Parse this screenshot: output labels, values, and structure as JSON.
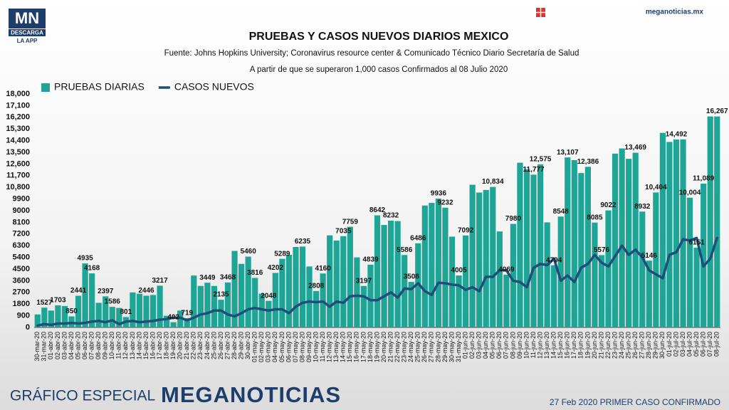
{
  "header": {
    "logo": "MN",
    "logo_sub": "DESCARGA",
    "logo_app": "LA APP",
    "site": "meganoticias.mx"
  },
  "footer": {
    "left": "GRÁFICO ESPECIAL",
    "brand": "MEGANOTICIAS",
    "right": "27 Feb 2020 PRIMER CASO CONFIRMADO"
  },
  "chart_data": {
    "type": "bar_line",
    "title": "PRUEBAS Y CASOS NUEVOS DIARIOS MEXICO",
    "subtitle": "Fuente: Johns Hopkins University; Coronavirus resource center & Comunicado Técnico Diario Secretaría de Salud",
    "note": "A partir de que se superaron 1,000 casos Confirmados al 08 Julio 2020",
    "categories": [
      "30-mar-20",
      "31-mar-20",
      "01-abr-20",
      "02-abr-20",
      "03-abr-20",
      "04-abr-20",
      "05-abr-20",
      "06-abr-20",
      "07-abr-20",
      "08-abr-20",
      "09-abr-20",
      "10-abr-20",
      "11-abr-20",
      "12-abr-20",
      "13-abr-20",
      "14-abr-20",
      "15-abr-20",
      "16-abr-20",
      "17-abr-20",
      "18-abr-20",
      "19-abr-20",
      "20-abr-20",
      "21-abr-20",
      "22-abr-20",
      "23-abr-20",
      "24-abr-20",
      "25-abr-20",
      "26-abr-20",
      "27-abr-20",
      "28-abr-20",
      "29-abr-20",
      "30-abr-20",
      "01-may-20",
      "02-may-20",
      "03-may-20",
      "04-may-20",
      "05-may-20",
      "06-may-20",
      "07-may-20",
      "08-may-20",
      "09-may-20",
      "10-may-20",
      "11-may-20",
      "12-may-20",
      "13-may-20",
      "14-may-20",
      "15-may-20",
      "16-may-20",
      "17-may-20",
      "18-may-20",
      "19-may-20",
      "20-may-20",
      "21-may-20",
      "22-may-20",
      "23-may-20",
      "24-may-20",
      "25-may-20",
      "26-may-20",
      "27-may-20",
      "28-may-20",
      "29-may-20",
      "30-may-20",
      "31-may-20",
      "01-jun-20",
      "02-jun-20",
      "03-jun-20",
      "04-jun-20",
      "05-jun-20",
      "06-jun-20",
      "07-jun-20",
      "08-jun-20",
      "09-jun-20",
      "10-jun-20",
      "11-jun-20",
      "12-jun-20",
      "13-jun-20",
      "14-jun-20",
      "15-jun-20",
      "16-jun-20",
      "17-jun-20",
      "18-jun-20",
      "19-jun-20",
      "20-jun-20",
      "21-jun-20",
      "22-jun-20",
      "23-jun-20",
      "24-jun-20",
      "25-jun-20",
      "26-jun-20",
      "27-jun-20",
      "28-jun-20",
      "29-jun-20",
      "30-jun-20",
      "01-jul-20",
      "02-jul-20",
      "03-jul-20",
      "04-jul-20",
      "05-jul-20",
      "06-jul-20",
      "07-jul-20",
      "08-jul-20"
    ],
    "series": [
      {
        "name": "PRUEBAS DIARIAS",
        "kind": "bar",
        "color": "#1fa596",
        "values": [
          1000,
          1527,
          1300,
          1703,
          1650,
          850,
          2441,
          4935,
          4168,
          1900,
          2397,
          1586,
          1500,
          801,
          2700,
          2600,
          2446,
          2500,
          3217,
          900,
          402,
          1300,
          719,
          4000,
          3200,
          3449,
          3200,
          2135,
          3468,
          5900,
          4900,
          5460,
          3816,
          2600,
          2048,
          4202,
          5289,
          5600,
          6200,
          6235,
          4700,
          2808,
          4160,
          7100,
          6700,
          7035,
          7759,
          5400,
          3197,
          4839,
          8642,
          7900,
          8232,
          8200,
          5586,
          3508,
          6486,
          9400,
          9600,
          9936,
          9232,
          7000,
          4005,
          7092,
          11000,
          10400,
          10600,
          10834,
          7400,
          4069,
          7980,
          12700,
          12200,
          11777,
          12575,
          8100,
          4794,
          8548,
          13107,
          12900,
          11900,
          12386,
          8085,
          5576,
          9022,
          13400,
          13800,
          13000,
          13469,
          8932,
          5146,
          10404,
          15000,
          14300,
          14492,
          14500,
          10004,
          6151,
          11089,
          16267,
          16267
        ],
        "value_labels": [
          null,
          "1527",
          null,
          "1703",
          null,
          "850",
          "2441",
          "4935",
          "4168",
          null,
          "2397",
          "1586",
          null,
          "801",
          null,
          null,
          "2446",
          null,
          "3217",
          null,
          "402",
          null,
          "719",
          null,
          null,
          "3449",
          null,
          "2135",
          "3468",
          null,
          null,
          "5460",
          "3816",
          null,
          "2048",
          "4202",
          "5289",
          null,
          null,
          "6235",
          null,
          "2808",
          "4160",
          null,
          null,
          "7035",
          "7759",
          null,
          "3197",
          "4839",
          "8642",
          null,
          "8232",
          null,
          "5586",
          "3508",
          "6486",
          null,
          null,
          "9936",
          "9232",
          null,
          "4005",
          "7092",
          null,
          null,
          null,
          "10,834",
          null,
          "4069",
          "7980",
          null,
          null,
          "11,777",
          "12,575",
          null,
          "4794",
          "8548",
          "13,107",
          null,
          null,
          "12,386",
          "8085",
          "5576",
          "9022",
          null,
          null,
          null,
          "13,469",
          "8932",
          "5146",
          "10,404",
          null,
          null,
          "14,492",
          null,
          "10,004",
          "6151",
          "11,089",
          null,
          "16,267"
        ]
      },
      {
        "name": "CASOS NUEVOS",
        "kind": "line",
        "color": "#1f4e79",
        "values": [
          150,
          250,
          200,
          300,
          300,
          350,
          300,
          350,
          450,
          500,
          400,
          550,
          250,
          450,
          500,
          400,
          450,
          500,
          600,
          650,
          750,
          750,
          550,
          750,
          1000,
          1100,
          1300,
          1300,
          1000,
          850,
          1100,
          1400,
          1500,
          1400,
          1300,
          1400,
          1400,
          1100,
          1600,
          1900,
          2000,
          1950,
          2000,
          1600,
          2000,
          1900,
          2400,
          2450,
          2400,
          2100,
          2100,
          2400,
          2700,
          2300,
          3000,
          2950,
          3400,
          2800,
          2500,
          3450,
          3400,
          3300,
          3250,
          2900,
          3100,
          2800,
          3900,
          3900,
          4400,
          4400,
          3600,
          3500,
          3100,
          4600,
          4900,
          4800,
          5300,
          3600,
          4000,
          3500,
          4600,
          4900,
          5600,
          5000,
          4700,
          5500,
          6300,
          5600,
          6000,
          5400,
          4400,
          4100,
          3800,
          5600,
          5800,
          6800,
          6700,
          6900,
          4700,
          5300,
          6900
        ]
      }
    ],
    "ylim": [
      0,
      18000
    ],
    "yticks": [
      0,
      900,
      1800,
      2700,
      3600,
      4500,
      5400,
      6300,
      7200,
      8100,
      9000,
      9900,
      {
        "value": 10800,
        "label": "10,800"
      },
      {
        "value": 11700,
        "label": "11,700"
      },
      {
        "value": 12600,
        "label": "12,600"
      },
      {
        "value": 13500,
        "label": "13,500"
      },
      {
        "value": 14400,
        "label": "14,400"
      },
      {
        "value": 15300,
        "label": "15,300"
      },
      {
        "value": 16200,
        "label": "16,200"
      },
      {
        "value": 17100,
        "label": "17,100"
      },
      {
        "value": 18000,
        "label": "18,000"
      }
    ],
    "grid": false
  }
}
